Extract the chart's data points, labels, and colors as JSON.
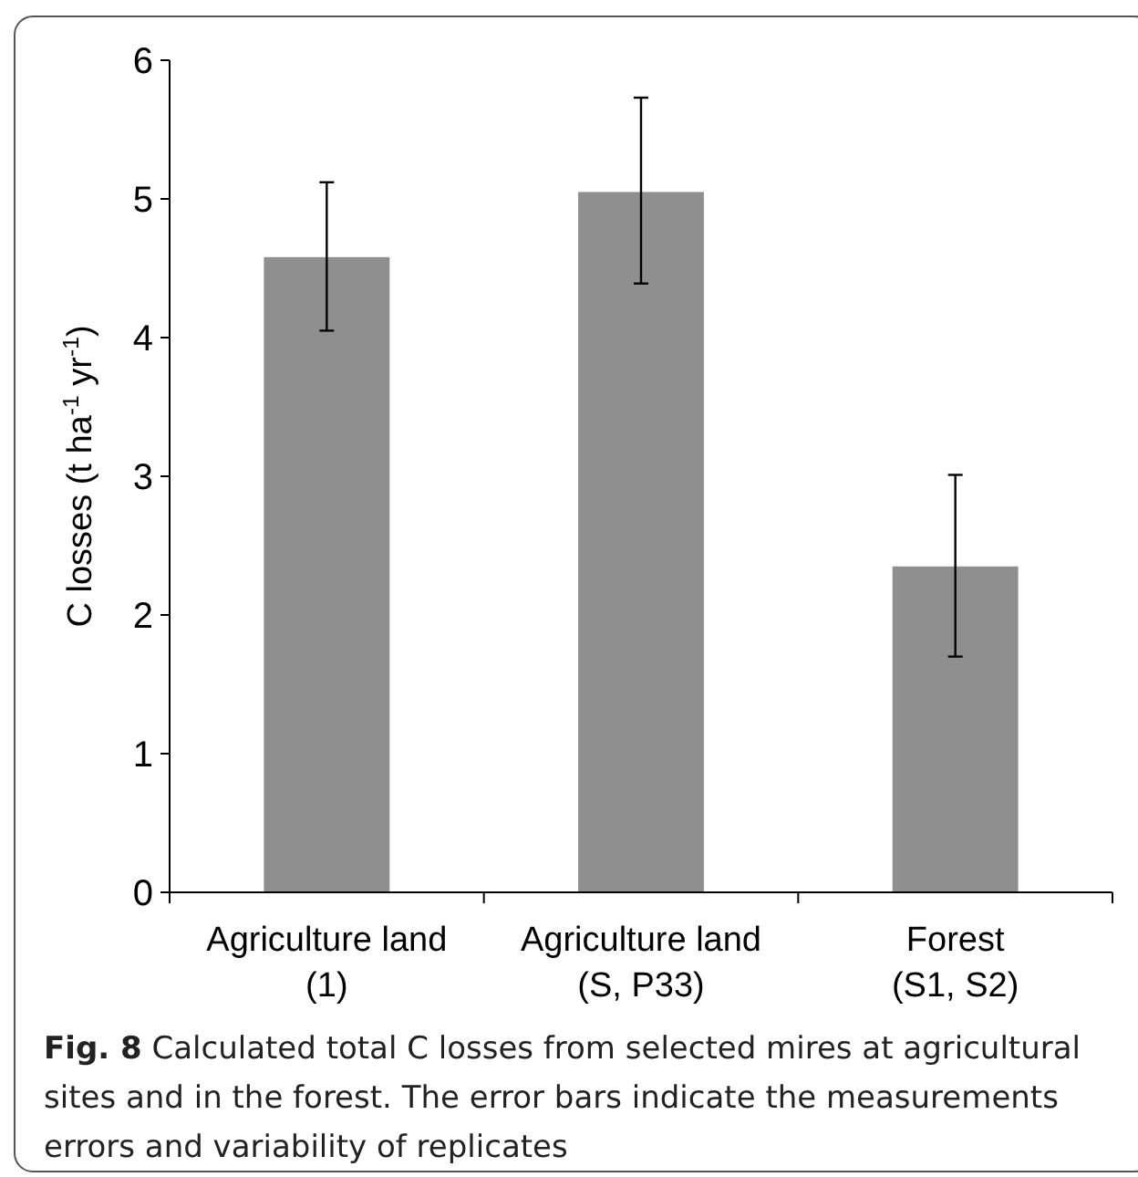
{
  "chart_data": {
    "type": "bar",
    "ylabel": "C losses (t ha$^{-1}$ yr$^{-1}$)",
    "categories": [
      "Agriculture land\n(1)",
      "Agriculture land\n(S, P33)",
      "Forest\n(S1, S2)"
    ],
    "values": [
      4.58,
      5.05,
      2.35
    ],
    "errors": [
      [
        4.05,
        5.12
      ],
      [
        4.39,
        5.73
      ],
      [
        1.7,
        3.01
      ]
    ],
    "color": "#8f8f8f",
    "ylim": [
      0,
      6
    ],
    "yticks": [
      0,
      1,
      2,
      3,
      4,
      5,
      6
    ],
    "grid": false,
    "annotations": [
      "Fig. 8  Calculated total C losses from selected mires at agricultural sites and in the forest. The error bars indicate the measurements errors and variability of replicates"
    ]
  }
}
